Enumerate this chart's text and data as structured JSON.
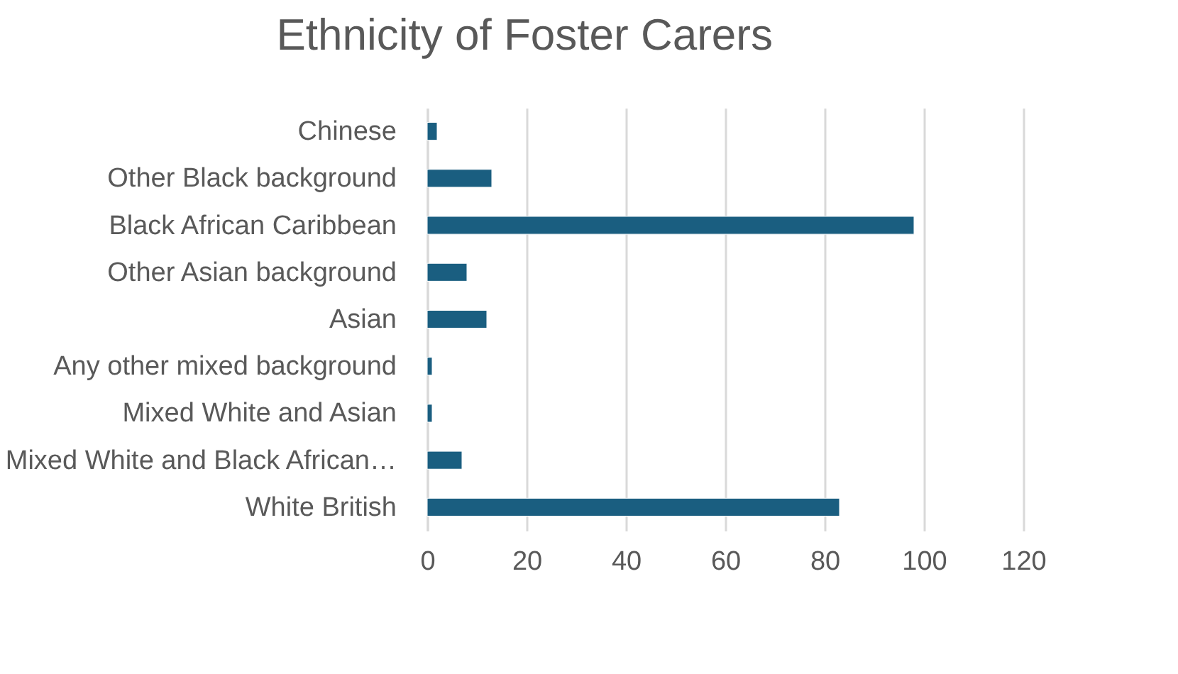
{
  "chart_data": {
    "type": "bar",
    "title": "Ethnicity of Foster Carers",
    "orientation": "horizontal",
    "categories": [
      "Chinese",
      "Other Black background",
      "Black African Caribbean",
      "Other Asian background",
      "Asian",
      "Any other mixed background",
      "Mixed White and Asian",
      "Mixed White and Black African…",
      "White British"
    ],
    "values": [
      2,
      13,
      98,
      8,
      12,
      1,
      1,
      7,
      83
    ],
    "color": "#1a5e80",
    "xlim": [
      0,
      120
    ],
    "xticks": [
      0,
      20,
      40,
      60,
      80,
      100,
      120
    ],
    "grid": "x"
  }
}
